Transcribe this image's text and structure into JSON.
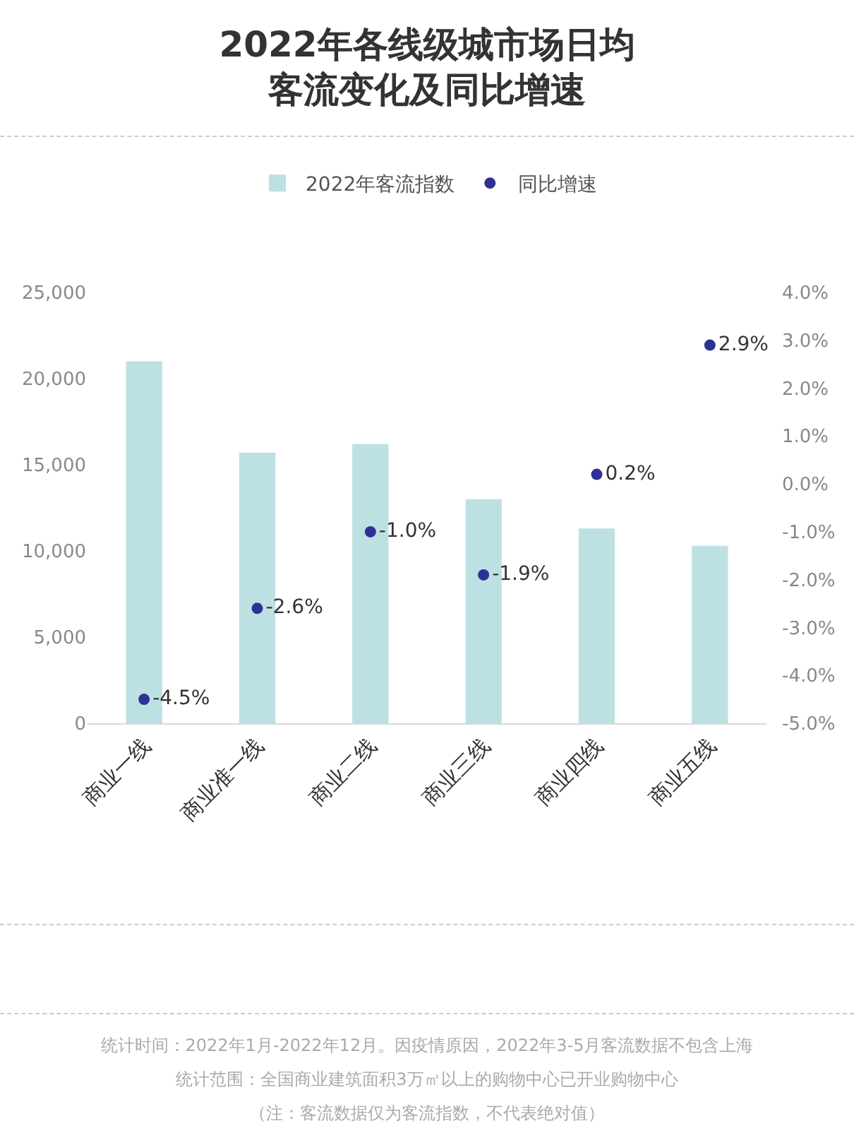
{
  "chart_data": {
    "type": "bar",
    "title": "2022年各线级城市场日均客流变化及同比增速",
    "categories": [
      "商业一线",
      "商业准一线",
      "商业二线",
      "商业三线",
      "商业四线",
      "商业五线"
    ],
    "series": [
      {
        "name": "2022年客流指数",
        "color": "#bde0e3",
        "values": [
          21000,
          15700,
          16200,
          13000,
          11300,
          10300
        ]
      },
      {
        "name": "同比增速",
        "type": "scatter",
        "axis": "y2",
        "color": "#2e3192",
        "values": [
          -4.5,
          -2.6,
          -1.0,
          -1.9,
          0.2,
          2.9
        ],
        "value_labels": [
          "-4.5%",
          "-2.6%",
          "-1.0%",
          "-1.9%",
          "0.2%",
          "2.9%"
        ]
      }
    ],
    "ylim": [
      0,
      25000
    ],
    "yticks": [
      0,
      {
        "value": 5000,
        "label": "5,000"
      },
      {
        "value": 10000,
        "label": "10,000"
      },
      {
        "value": 15000,
        "label": "15,000"
      },
      {
        "value": 20000,
        "label": "20,000"
      },
      {
        "value": 25000,
        "label": "25,000"
      }
    ],
    "y2lim": [
      -5,
      4
    ],
    "y2ticks": [
      {
        "value": -5,
        "label": "-5.0%"
      },
      {
        "value": -4,
        "label": "-4.0%"
      },
      {
        "value": -3,
        "label": "-3.0%"
      },
      {
        "value": -2,
        "label": "-2.0%"
      },
      {
        "value": -1,
        "label": "-1.0%"
      },
      {
        "value": 0,
        "label": "0.0%"
      },
      {
        "value": 1,
        "label": "1.0%"
      },
      {
        "value": 2,
        "label": "2.0%"
      },
      {
        "value": 3,
        "label": "3.0%"
      },
      {
        "value": 4,
        "label": "4.0%"
      }
    ],
    "marker": "circle",
    "legend": "top",
    "annotations": [
      "统计时间：2022年1月-2022年12月。因疫情原因，2022年3-5月客流数据不包含上海",
      "统计范围：全国商业建筑面积3万㎡以上的购物中心已开业购物中心",
      "（注：客流数据仅为客流指数，不代表绝对值）"
    ]
  }
}
